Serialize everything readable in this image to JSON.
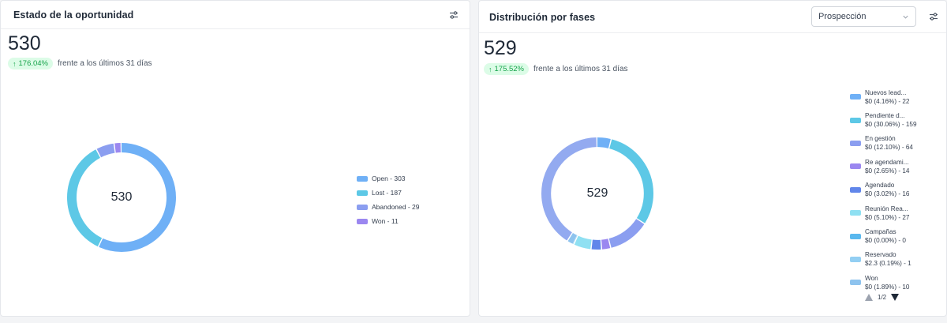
{
  "card1": {
    "title": "Estado de la oportunidad",
    "total": "530",
    "trend_pct": "176.04%",
    "trend_text": "frente a los últimos 31 días",
    "center": "530",
    "legend": [
      {
        "label": "Open - 303",
        "color": "#6fb0f6",
        "value": 303
      },
      {
        "label": "Lost - 187",
        "color": "#5dc8e6",
        "value": 187
      },
      {
        "label": "Abandoned - 29",
        "color": "#8b9ef0",
        "value": 29
      },
      {
        "label": "Won - 11",
        "color": "#9b87f0",
        "value": 11
      }
    ]
  },
  "card2": {
    "title": "Distribución por fases",
    "select_value": "Prospección",
    "total": "529",
    "trend_pct": "175.52%",
    "trend_text": "frente a los últimos 31 días",
    "center": "529",
    "legend": [
      {
        "name": "Nuevos lead...",
        "detail": "$0 (4.16%) - 22",
        "color": "#6fb0f6",
        "value": 22
      },
      {
        "name": "Pendiente d...",
        "detail": "$0 (30.06%) - 159",
        "color": "#5dc8e6",
        "value": 159
      },
      {
        "name": "En gestión",
        "detail": "$0 (12.10%) - 64",
        "color": "#8b9ef0",
        "value": 64
      },
      {
        "name": "Re agendami...",
        "detail": "$0 (2.65%) - 14",
        "color": "#9b87f0",
        "value": 14
      },
      {
        "name": "Agendado",
        "detail": "$0 (3.02%) - 16",
        "color": "#6186ea",
        "value": 16
      },
      {
        "name": "Reunión Rea...",
        "detail": "$0 (5.10%) - 27",
        "color": "#8fe0f2",
        "value": 27
      },
      {
        "name": "Campañas",
        "detail": "$0 (0.00%) - 0",
        "color": "#5ab8ee",
        "value": 0
      },
      {
        "name": "Reservado",
        "detail": "$2.3 (0.19%) - 1",
        "color": "#93cff3",
        "value": 1
      },
      {
        "name": "Won",
        "detail": "$0 (1.89%) - 10",
        "color": "#8ec3ee",
        "value": 10
      }
    ],
    "remainder_color": "#93aaf0",
    "pager": "1/2"
  },
  "icons": {
    "filter": "sliders-icon",
    "chevron": "chevron-down-icon",
    "trend": "arrow-up-icon"
  }
}
